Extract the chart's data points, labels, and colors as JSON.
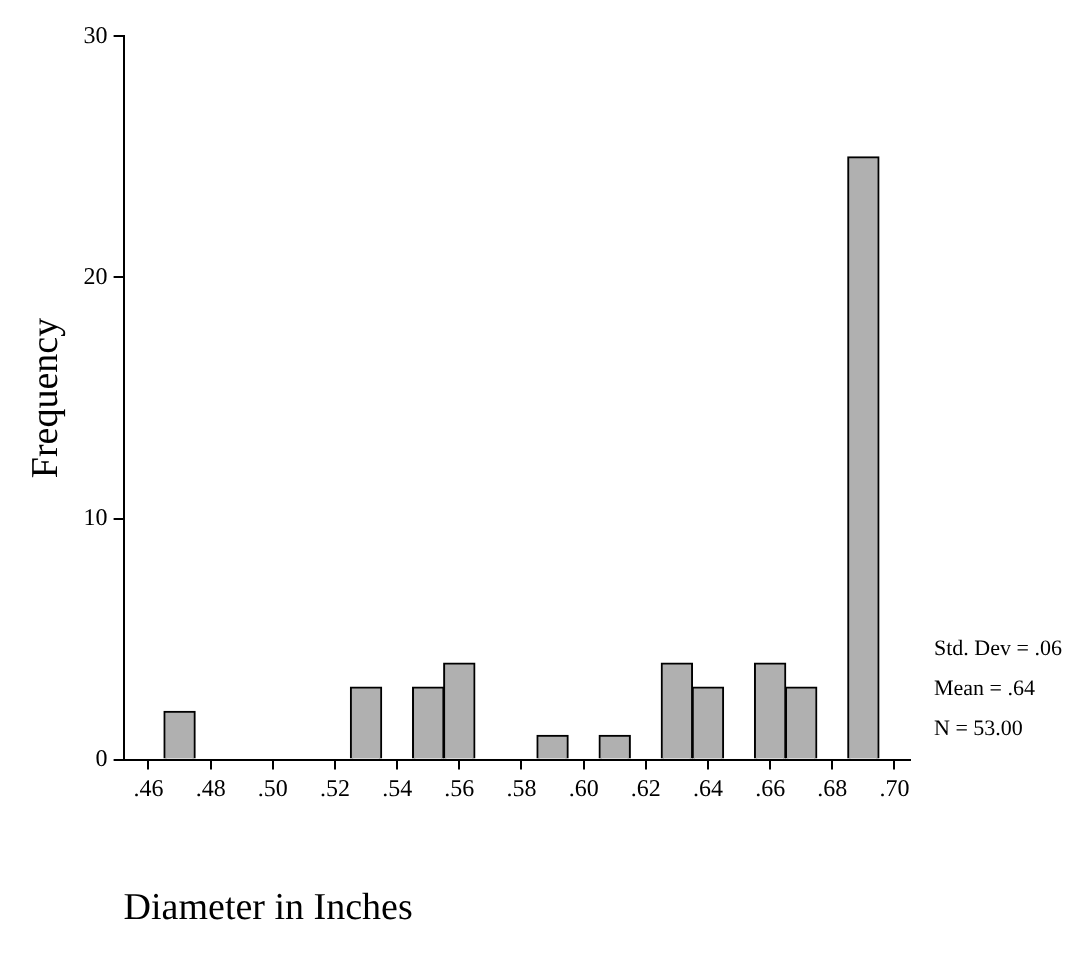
{
  "chart_data": {
    "type": "histogram",
    "xlabel": "Diameter in Inches",
    "ylabel": "Frequency",
    "bins": [
      0.465,
      0.475,
      0.485,
      0.495,
      0.505,
      0.515,
      0.525,
      0.535,
      0.545,
      0.555,
      0.565,
      0.575,
      0.585,
      0.595,
      0.605,
      0.615,
      0.625,
      0.635,
      0.645,
      0.655,
      0.665,
      0.675,
      0.685,
      0.695
    ],
    "values": [
      2,
      0,
      0,
      0,
      0,
      0,
      3,
      0,
      3,
      4,
      0,
      0,
      1,
      0,
      1,
      0,
      4,
      3,
      0,
      4,
      3,
      0,
      25
    ],
    "color": "#b0b0b0",
    "xlim": [
      0.452,
      0.705
    ],
    "xticks": [
      {
        "value": 0.46,
        "label": ".46"
      },
      {
        "value": 0.48,
        "label": ".48"
      },
      {
        "value": 0.5,
        "label": ".50"
      },
      {
        "value": 0.52,
        "label": ".52"
      },
      {
        "value": 0.54,
        "label": ".54"
      },
      {
        "value": 0.56,
        "label": ".56"
      },
      {
        "value": 0.58,
        "label": ".58"
      },
      {
        "value": 0.6,
        "label": ".60"
      },
      {
        "value": 0.62,
        "label": ".62"
      },
      {
        "value": 0.64,
        "label": ".64"
      },
      {
        "value": 0.66,
        "label": ".66"
      },
      {
        "value": 0.68,
        "label": ".68"
      },
      {
        "value": 0.7,
        "label": ".70"
      }
    ],
    "ylim": [
      0,
      30
    ],
    "yticks": [
      0,
      10,
      20,
      30
    ],
    "annotations": [
      "Std. Dev = .06",
      "Mean = .64",
      "N = 53.00"
    ],
    "grid": false,
    "legend": false
  }
}
